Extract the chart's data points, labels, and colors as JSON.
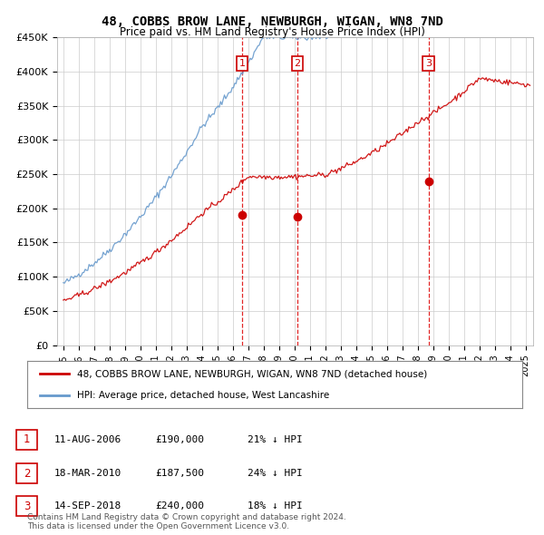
{
  "title": "48, COBBS BROW LANE, NEWBURGH, WIGAN, WN8 7ND",
  "subtitle": "Price paid vs. HM Land Registry's House Price Index (HPI)",
  "ylim": [
    0,
    450000
  ],
  "yticks": [
    0,
    50000,
    100000,
    150000,
    200000,
    250000,
    300000,
    350000,
    400000,
    450000
  ],
  "ytick_labels": [
    "£0",
    "£50K",
    "£100K",
    "£150K",
    "£200K",
    "£250K",
    "£300K",
    "£350K",
    "£400K",
    "£450K"
  ],
  "sale_prices": [
    190000,
    187500,
    240000
  ],
  "sale_labels": [
    "1",
    "2",
    "3"
  ],
  "sale_year_decimals": [
    2006.615,
    2010.205,
    2018.706
  ],
  "vline_color": "#dd0000",
  "marker_color": "#cc0000",
  "hpi_color": "#6699cc",
  "price_line_color": "#cc0000",
  "legend_label_house": "48, COBBS BROW LANE, NEWBURGH, WIGAN, WN8 7ND (detached house)",
  "legend_label_hpi": "HPI: Average price, detached house, West Lancashire",
  "table_rows": [
    [
      "1",
      "11-AUG-2006",
      "£190,000",
      "21% ↓ HPI"
    ],
    [
      "2",
      "18-MAR-2010",
      "£187,500",
      "24% ↓ HPI"
    ],
    [
      "3",
      "14-SEP-2018",
      "£240,000",
      "18% ↓ HPI"
    ]
  ],
  "footer": "Contains HM Land Registry data © Crown copyright and database right 2024.\nThis data is licensed under the Open Government Licence v3.0.",
  "background_color": "#ffffff",
  "grid_color": "#cccccc"
}
